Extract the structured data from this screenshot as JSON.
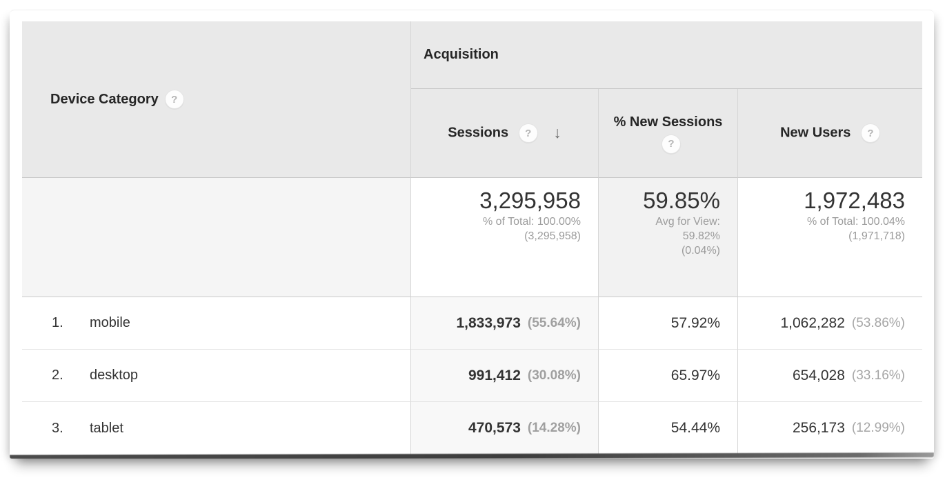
{
  "icons": {
    "help": "?",
    "sort_desc": "↓"
  },
  "colors": {
    "header_bg": "#e9e9e9",
    "sorted_column_bg": "#f8f8f8",
    "summary_dim_bg": "#f5f5f5",
    "summary_mid_bg": "#f2f2f2",
    "border": "#d6d6d6",
    "text_primary": "#333333",
    "text_secondary": "#9b9b9b"
  },
  "table": {
    "dimension_header": "Device Category",
    "group_header": "Acquisition",
    "columns": {
      "sessions": "Sessions",
      "pct_new_sessions": "% New Sessions",
      "new_users": "New Users"
    },
    "summary": {
      "sessions": {
        "value": "3,295,958",
        "sub1": "% of Total: 100.00%",
        "sub2": "(3,295,958)"
      },
      "pct_new_sessions": {
        "value": "59.85%",
        "sub1": "Avg for View:",
        "sub2": "59.82%",
        "sub3": "(0.04%)"
      },
      "new_users": {
        "value": "1,972,483",
        "sub1": "% of Total: 100.04%",
        "sub2": "(1,971,718)"
      }
    },
    "rows": [
      {
        "index": "1.",
        "label": "mobile",
        "sessions": "1,833,973",
        "sessions_pct": "(55.64%)",
        "pct_new_sessions": "57.92%",
        "new_users": "1,062,282",
        "new_users_pct": "(53.86%)"
      },
      {
        "index": "2.",
        "label": "desktop",
        "sessions": "991,412",
        "sessions_pct": "(30.08%)",
        "pct_new_sessions": "65.97%",
        "new_users": "654,028",
        "new_users_pct": "(33.16%)"
      },
      {
        "index": "3.",
        "label": "tablet",
        "sessions": "470,573",
        "sessions_pct": "(14.28%)",
        "pct_new_sessions": "54.44%",
        "new_users": "256,173",
        "new_users_pct": "(12.99%)"
      }
    ]
  }
}
